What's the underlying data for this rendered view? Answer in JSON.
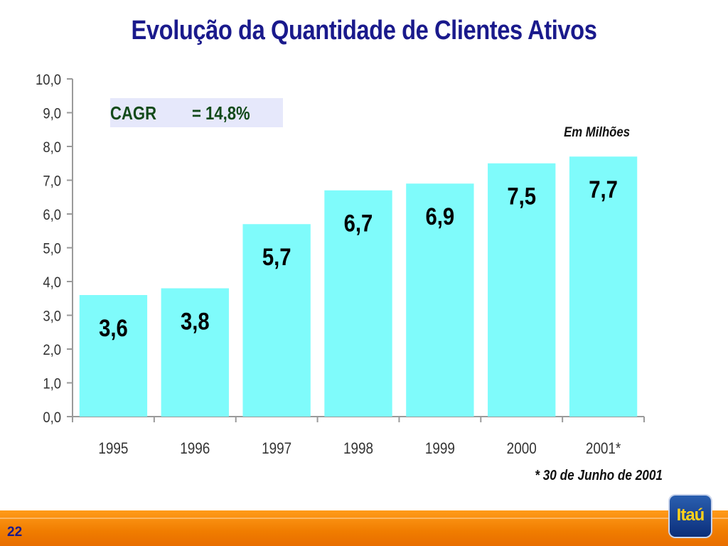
{
  "title": "Evolução da Quantidade de Clientes Ativos",
  "cagr": {
    "label": "CAGR",
    "value": "= 14,8%"
  },
  "unit_note": "Em Milhões",
  "footnote": "* 30 de Junho de 2001",
  "page_number": "22",
  "logo_text": "Itaú",
  "colors": {
    "bar": "#7ffbfb",
    "title": "#1a1a8c",
    "axis": "#9a9a9a",
    "footer": "#f07c00"
  },
  "chart_data": {
    "type": "bar",
    "categories": [
      "1995",
      "1996",
      "1997",
      "1998",
      "1999",
      "2000",
      "2001*"
    ],
    "values": [
      3.6,
      3.8,
      5.7,
      6.7,
      6.9,
      7.5,
      7.7
    ],
    "data_labels": [
      "3,6",
      "3,8",
      "5,7",
      "6,7",
      "6,9",
      "7,5",
      "7,7"
    ],
    "y_ticks": [
      "0,0",
      "1,0",
      "2,0",
      "3,0",
      "4,0",
      "5,0",
      "6,0",
      "7,0",
      "8,0",
      "9,0",
      "10,0"
    ],
    "ylim": [
      0,
      10
    ],
    "grid": false,
    "legend": "none"
  }
}
